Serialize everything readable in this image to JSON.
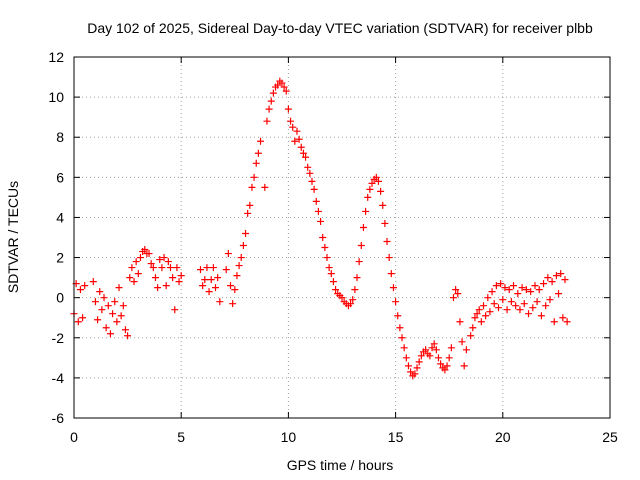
{
  "chart_data": {
    "type": "scatter",
    "title": "Day 102 of 2025, Sidereal Day-to-day VTEC variation (SDTVAR) for receiver plbb",
    "xlabel": "GPS time / hours",
    "ylabel": "SDTVAR / TECUs",
    "xlim": [
      0,
      25
    ],
    "ylim": [
      -6,
      12
    ],
    "x_ticks": [
      "0",
      "5",
      "10",
      "15",
      "20",
      "25"
    ],
    "y_ticks": [
      "-6",
      "-4",
      "-2",
      "0",
      "2",
      "4",
      "6",
      "8",
      "10",
      "12"
    ],
    "grid": true,
    "marker": "+",
    "colors": {
      "series": "#ff0000",
      "grid": "#a0a0a0",
      "axis": "#000000"
    },
    "series": [
      {
        "name": "SDTVAR",
        "points": [
          [
            0.0,
            -0.8
          ],
          [
            0.1,
            0.7
          ],
          [
            0.2,
            -1.2
          ],
          [
            0.3,
            0.4
          ],
          [
            0.4,
            -1.0
          ],
          [
            0.5,
            0.6
          ],
          [
            0.9,
            0.8
          ],
          [
            1.0,
            -0.2
          ],
          [
            1.1,
            -1.1
          ],
          [
            1.2,
            0.3
          ],
          [
            1.3,
            -0.6
          ],
          [
            1.4,
            0.0
          ],
          [
            1.5,
            -1.5
          ],
          [
            1.6,
            -0.4
          ],
          [
            1.7,
            -1.8
          ],
          [
            1.8,
            -0.8
          ],
          [
            1.9,
            -0.2
          ],
          [
            2.0,
            -1.2
          ],
          [
            2.1,
            0.5
          ],
          [
            2.2,
            -0.9
          ],
          [
            2.3,
            -0.4
          ],
          [
            2.4,
            -1.6
          ],
          [
            2.5,
            -1.9
          ],
          [
            2.6,
            1.0
          ],
          [
            2.7,
            1.5
          ],
          [
            2.8,
            0.8
          ],
          [
            2.9,
            1.8
          ],
          [
            3.0,
            1.2
          ],
          [
            3.1,
            2.0
          ],
          [
            3.2,
            2.3
          ],
          [
            3.3,
            2.4
          ],
          [
            3.4,
            2.2
          ],
          [
            3.5,
            2.2
          ],
          [
            3.6,
            1.7
          ],
          [
            3.7,
            1.5
          ],
          [
            3.8,
            1.0
          ],
          [
            3.9,
            0.5
          ],
          [
            4.0,
            1.9
          ],
          [
            4.1,
            1.5
          ],
          [
            4.2,
            2.0
          ],
          [
            4.3,
            0.6
          ],
          [
            4.4,
            1.8
          ],
          [
            4.5,
            1.5
          ],
          [
            4.6,
            1.0
          ],
          [
            4.7,
            -0.6
          ],
          [
            4.8,
            1.5
          ],
          [
            4.9,
            0.8
          ],
          [
            5.0,
            1.1
          ],
          [
            5.9,
            1.4
          ],
          [
            6.0,
            0.6
          ],
          [
            6.1,
            0.9
          ],
          [
            6.2,
            1.5
          ],
          [
            6.3,
            0.3
          ],
          [
            6.4,
            0.9
          ],
          [
            6.5,
            1.5
          ],
          [
            6.6,
            0.5
          ],
          [
            6.7,
            1.0
          ],
          [
            6.8,
            -0.2
          ],
          [
            7.1,
            1.4
          ],
          [
            7.2,
            2.2
          ],
          [
            7.3,
            0.6
          ],
          [
            7.4,
            -0.3
          ],
          [
            7.5,
            0.4
          ],
          [
            7.6,
            1.1
          ],
          [
            7.7,
            1.6
          ],
          [
            7.8,
            2.0
          ],
          [
            7.9,
            2.6
          ],
          [
            8.0,
            3.2
          ],
          [
            8.1,
            4.2
          ],
          [
            8.2,
            4.6
          ],
          [
            8.3,
            5.5
          ],
          [
            8.4,
            6.0
          ],
          [
            8.5,
            6.7
          ],
          [
            8.6,
            7.2
          ],
          [
            8.7,
            7.8
          ],
          [
            8.9,
            5.5
          ],
          [
            9.0,
            8.8
          ],
          [
            9.1,
            9.4
          ],
          [
            9.2,
            9.8
          ],
          [
            9.3,
            10.2
          ],
          [
            9.4,
            10.5
          ],
          [
            9.5,
            10.6
          ],
          [
            9.6,
            10.8
          ],
          [
            9.7,
            10.7
          ],
          [
            9.8,
            10.5
          ],
          [
            9.9,
            10.3
          ],
          [
            10.0,
            9.4
          ],
          [
            10.1,
            8.8
          ],
          [
            10.2,
            8.5
          ],
          [
            10.3,
            7.8
          ],
          [
            10.4,
            8.3
          ],
          [
            10.5,
            7.9
          ],
          [
            10.6,
            7.5
          ],
          [
            10.7,
            7.2
          ],
          [
            10.8,
            7.0
          ],
          [
            10.9,
            6.5
          ],
          [
            11.0,
            6.2
          ],
          [
            11.1,
            5.8
          ],
          [
            11.2,
            5.4
          ],
          [
            11.3,
            4.8
          ],
          [
            11.4,
            4.3
          ],
          [
            11.5,
            3.8
          ],
          [
            11.6,
            3.0
          ],
          [
            11.7,
            2.5
          ],
          [
            11.8,
            2.0
          ],
          [
            11.9,
            1.5
          ],
          [
            12.0,
            1.2
          ],
          [
            12.1,
            0.8
          ],
          [
            12.2,
            0.4
          ],
          [
            12.3,
            0.2
          ],
          [
            12.4,
            0.1
          ],
          [
            12.5,
            0.0
          ],
          [
            12.6,
            -0.2
          ],
          [
            12.7,
            -0.3
          ],
          [
            12.8,
            -0.4
          ],
          [
            12.9,
            -0.3
          ],
          [
            13.0,
            -0.1
          ],
          [
            13.1,
            0.4
          ],
          [
            13.2,
            1.0
          ],
          [
            13.3,
            1.8
          ],
          [
            13.4,
            2.6
          ],
          [
            13.5,
            3.5
          ],
          [
            13.6,
            4.3
          ],
          [
            13.7,
            5.0
          ],
          [
            13.8,
            5.4
          ],
          [
            13.9,
            5.7
          ],
          [
            14.0,
            5.9
          ],
          [
            14.1,
            6.0
          ],
          [
            14.2,
            5.8
          ],
          [
            14.3,
            5.3
          ],
          [
            14.4,
            4.6
          ],
          [
            14.5,
            3.7
          ],
          [
            14.6,
            2.8
          ],
          [
            14.7,
            2.0
          ],
          [
            14.8,
            1.2
          ],
          [
            14.9,
            0.5
          ],
          [
            15.0,
            -0.2
          ],
          [
            15.1,
            -0.9
          ],
          [
            15.2,
            -1.5
          ],
          [
            15.3,
            -2.0
          ],
          [
            15.4,
            -2.5
          ],
          [
            15.5,
            -3.0
          ],
          [
            15.6,
            -3.4
          ],
          [
            15.7,
            -3.7
          ],
          [
            15.8,
            -3.9
          ],
          [
            15.9,
            -3.8
          ],
          [
            16.0,
            -3.5
          ],
          [
            16.1,
            -3.2
          ],
          [
            16.2,
            -2.9
          ],
          [
            16.3,
            -2.7
          ],
          [
            16.4,
            -2.6
          ],
          [
            16.5,
            -2.8
          ],
          [
            16.6,
            -2.9
          ],
          [
            16.7,
            -2.5
          ],
          [
            16.8,
            -2.3
          ],
          [
            16.9,
            -2.6
          ],
          [
            17.0,
            -3.0
          ],
          [
            17.1,
            -3.3
          ],
          [
            17.2,
            -3.5
          ],
          [
            17.3,
            -3.6
          ],
          [
            17.4,
            -3.4
          ],
          [
            17.5,
            -3.0
          ],
          [
            17.6,
            -2.5
          ],
          [
            17.7,
            0.0
          ],
          [
            17.8,
            0.4
          ],
          [
            17.9,
            0.2
          ],
          [
            18.0,
            -1.2
          ],
          [
            18.1,
            -2.2
          ],
          [
            18.2,
            -3.4
          ],
          [
            18.3,
            -2.6
          ],
          [
            18.5,
            -1.9
          ],
          [
            18.6,
            -1.5
          ],
          [
            18.7,
            -1.0
          ],
          [
            18.8,
            -0.8
          ],
          [
            18.9,
            -0.6
          ],
          [
            19.0,
            -1.2
          ],
          [
            19.1,
            -0.4
          ],
          [
            19.2,
            -0.9
          ],
          [
            19.3,
            0.0
          ],
          [
            19.4,
            -0.7
          ],
          [
            19.5,
            0.3
          ],
          [
            19.6,
            -0.3
          ],
          [
            19.7,
            0.6
          ],
          [
            19.8,
            -0.5
          ],
          [
            19.9,
            0.7
          ],
          [
            20.0,
            -0.1
          ],
          [
            20.1,
            0.5
          ],
          [
            20.2,
            -0.6
          ],
          [
            20.3,
            0.4
          ],
          [
            20.4,
            -0.2
          ],
          [
            20.5,
            0.6
          ],
          [
            20.6,
            -0.4
          ],
          [
            20.7,
            0.2
          ],
          [
            20.8,
            -0.6
          ],
          [
            20.9,
            0.5
          ],
          [
            21.0,
            -0.3
          ],
          [
            21.1,
            0.4
          ],
          [
            21.2,
            -0.8
          ],
          [
            21.3,
            0.3
          ],
          [
            21.4,
            -0.5
          ],
          [
            21.5,
            0.6
          ],
          [
            21.6,
            -0.2
          ],
          [
            21.7,
            0.4
          ],
          [
            21.8,
            -0.9
          ],
          [
            21.9,
            0.7
          ],
          [
            22.0,
            -0.4
          ],
          [
            22.1,
            1.0
          ],
          [
            22.2,
            -0.1
          ],
          [
            22.3,
            0.8
          ],
          [
            22.4,
            -1.2
          ],
          [
            22.5,
            1.1
          ],
          [
            22.6,
            0.2
          ],
          [
            22.7,
            1.2
          ],
          [
            22.8,
            -1.0
          ],
          [
            22.9,
            0.9
          ],
          [
            23.0,
            -1.2
          ]
        ]
      }
    ]
  }
}
